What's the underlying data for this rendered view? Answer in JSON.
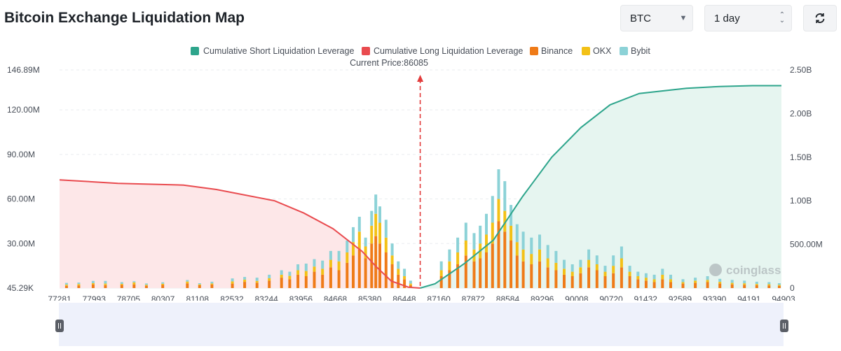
{
  "header": {
    "title": "Bitcoin Exchange Liquidation Map",
    "coin_select": "BTC",
    "period_select": "1 day"
  },
  "icons": {
    "coin_caret": "caret-down-icon",
    "period_caret": "updown-icon",
    "refresh": "refresh-icon"
  },
  "colors": {
    "short": "#2ea58c",
    "long": "#e94b4f",
    "binance": "#ef7b18",
    "okx": "#f3c117",
    "bybit": "#8cd2d7",
    "long_fill": "#fde7e8",
    "short_fill": "#e6f5f0",
    "price_line": "#e23b3b"
  },
  "chart_data": {
    "type": "bar",
    "legend": [
      "Cumulative Short Liquidation Leverage",
      "Cumulative Long Liquidation Leverage",
      "Binance",
      "OKX",
      "Bybit"
    ],
    "annotation": "Current Price:86085",
    "current_price": 86085,
    "x_ticks": [
      "77281",
      "77993",
      "78705",
      "80307",
      "81108",
      "82532",
      "83244",
      "83956",
      "84668",
      "85380",
      "86448",
      "87160",
      "87872",
      "88584",
      "89296",
      "90008",
      "90720",
      "91432",
      "92589",
      "93390",
      "94191",
      "94903"
    ],
    "x_range": [
      77281,
      94903
    ],
    "left_axis": {
      "ticks": [
        "45.29K",
        "30.00M",
        "60.00M",
        "90.00M",
        "120.00M",
        "146.89M"
      ],
      "range": [
        0,
        146.89
      ],
      "unit": "M"
    },
    "right_axis": {
      "ticks": [
        "0",
        "500.00M",
        "1.00B",
        "1.50B",
        "2.00B",
        "2.50B"
      ],
      "range": [
        0,
        2.5
      ],
      "unit": "B"
    },
    "watermark": "coinglass",
    "stacked_bar_points": [
      [
        77450,
        1.5,
        0.8,
        1.2
      ],
      [
        77750,
        1.8,
        0.9,
        1.0
      ],
      [
        78100,
        2.5,
        0.8,
        1.5
      ],
      [
        78400,
        2,
        1,
        1.8
      ],
      [
        78800,
        2.2,
        0.6,
        1.2
      ],
      [
        79100,
        2.5,
        1.3,
        0.8
      ],
      [
        79400,
        1.6,
        0.6,
        0.9
      ],
      [
        79800,
        2.1,
        0.8,
        1.0
      ],
      [
        80400,
        3.2,
        1.2,
        1.0
      ],
      [
        80700,
        1.9,
        0.6,
        0.8
      ],
      [
        81000,
        2.4,
        0.7,
        1.2
      ],
      [
        81500,
        3,
        1.5,
        2
      ],
      [
        81800,
        4.2,
        1.5,
        1.8
      ],
      [
        82100,
        3.6,
        1.2,
        2.2
      ],
      [
        82400,
        5,
        1.6,
        2.4
      ],
      [
        82700,
        7,
        2,
        3
      ],
      [
        82900,
        6,
        2.2,
        2.8
      ],
      [
        83100,
        9,
        3,
        4
      ],
      [
        83300,
        8,
        3.5,
        5
      ],
      [
        83500,
        11,
        3.5,
        5
      ],
      [
        83700,
        9,
        4,
        5.5
      ],
      [
        83900,
        14,
        5,
        6
      ],
      [
        84100,
        12,
        6,
        7
      ],
      [
        84300,
        17,
        7,
        8
      ],
      [
        84450,
        22,
        9,
        10
      ],
      [
        84600,
        26,
        12,
        10
      ],
      [
        84750,
        20,
        8,
        6
      ],
      [
        84900,
        30,
        12,
        10
      ],
      [
        85000,
        35,
        15,
        13
      ],
      [
        85100,
        30,
        14,
        11
      ],
      [
        85250,
        24,
        10,
        12
      ],
      [
        85400,
        16,
        6,
        8
      ],
      [
        85550,
        9,
        4,
        5
      ],
      [
        85700,
        6,
        2,
        5
      ],
      [
        85850,
        2,
        1,
        2
      ],
      [
        86600,
        8,
        4,
        6
      ],
      [
        86800,
        12,
        6,
        8
      ],
      [
        87000,
        16,
        8,
        10
      ],
      [
        87200,
        22,
        10,
        12
      ],
      [
        87400,
        18,
        8,
        11
      ],
      [
        87550,
        20,
        10,
        12
      ],
      [
        87700,
        24,
        12,
        14
      ],
      [
        87850,
        30,
        14,
        18
      ],
      [
        88000,
        45,
        15,
        20
      ],
      [
        88150,
        38,
        14,
        20
      ],
      [
        88300,
        32,
        10,
        14
      ],
      [
        88450,
        22,
        9,
        12
      ],
      [
        88600,
        18,
        8,
        12
      ],
      [
        88800,
        16,
        7,
        11
      ],
      [
        89000,
        18,
        8,
        10
      ],
      [
        89200,
        14,
        6,
        9
      ],
      [
        89400,
        12,
        5,
        8
      ],
      [
        89600,
        9,
        4,
        6
      ],
      [
        89800,
        8,
        3,
        5
      ],
      [
        90000,
        10,
        4,
        5
      ],
      [
        90200,
        14,
        5,
        7
      ],
      [
        90400,
        12,
        4,
        6
      ],
      [
        90600,
        8,
        3,
        4
      ],
      [
        90800,
        10,
        5,
        7
      ],
      [
        91000,
        14,
        6,
        8
      ],
      [
        91200,
        8,
        3,
        4
      ],
      [
        91400,
        6,
        2,
        3
      ],
      [
        91600,
        5,
        2,
        3
      ],
      [
        91800,
        4,
        2,
        3
      ],
      [
        92000,
        6,
        3,
        4
      ],
      [
        92200,
        4,
        2,
        3
      ],
      [
        92500,
        3,
        1,
        2
      ],
      [
        92800,
        3.5,
        1.5,
        2
      ],
      [
        93100,
        4,
        1.5,
        2.5
      ],
      [
        93400,
        3,
        1.2,
        2
      ],
      [
        93700,
        2.5,
        1,
        2
      ],
      [
        94000,
        2.2,
        1,
        1.8
      ],
      [
        94300,
        2,
        0.8,
        1.5
      ],
      [
        94600,
        1.8,
        0.8,
        1.4
      ],
      [
        94850,
        1.5,
        0.6,
        1.2
      ]
    ],
    "cumulative_long_points": [
      [
        77281,
        1.24
      ],
      [
        78705,
        1.2
      ],
      [
        80307,
        1.18
      ],
      [
        81108,
        1.13
      ],
      [
        82532,
        1.0
      ],
      [
        83244,
        0.86
      ],
      [
        83956,
        0.68
      ],
      [
        84668,
        0.42
      ],
      [
        85000,
        0.25
      ],
      [
        85380,
        0.08
      ],
      [
        85800,
        0.01
      ],
      [
        86085,
        0
      ]
    ],
    "cumulative_short_points": [
      [
        86085,
        0
      ],
      [
        86448,
        0.05
      ],
      [
        87160,
        0.28
      ],
      [
        87872,
        0.55
      ],
      [
        88584,
        1.05
      ],
      [
        89296,
        1.5
      ],
      [
        90008,
        1.84
      ],
      [
        90720,
        2.1
      ],
      [
        91432,
        2.23
      ],
      [
        92589,
        2.29
      ],
      [
        93390,
        2.31
      ],
      [
        94191,
        2.32
      ],
      [
        94903,
        2.32
      ]
    ]
  }
}
